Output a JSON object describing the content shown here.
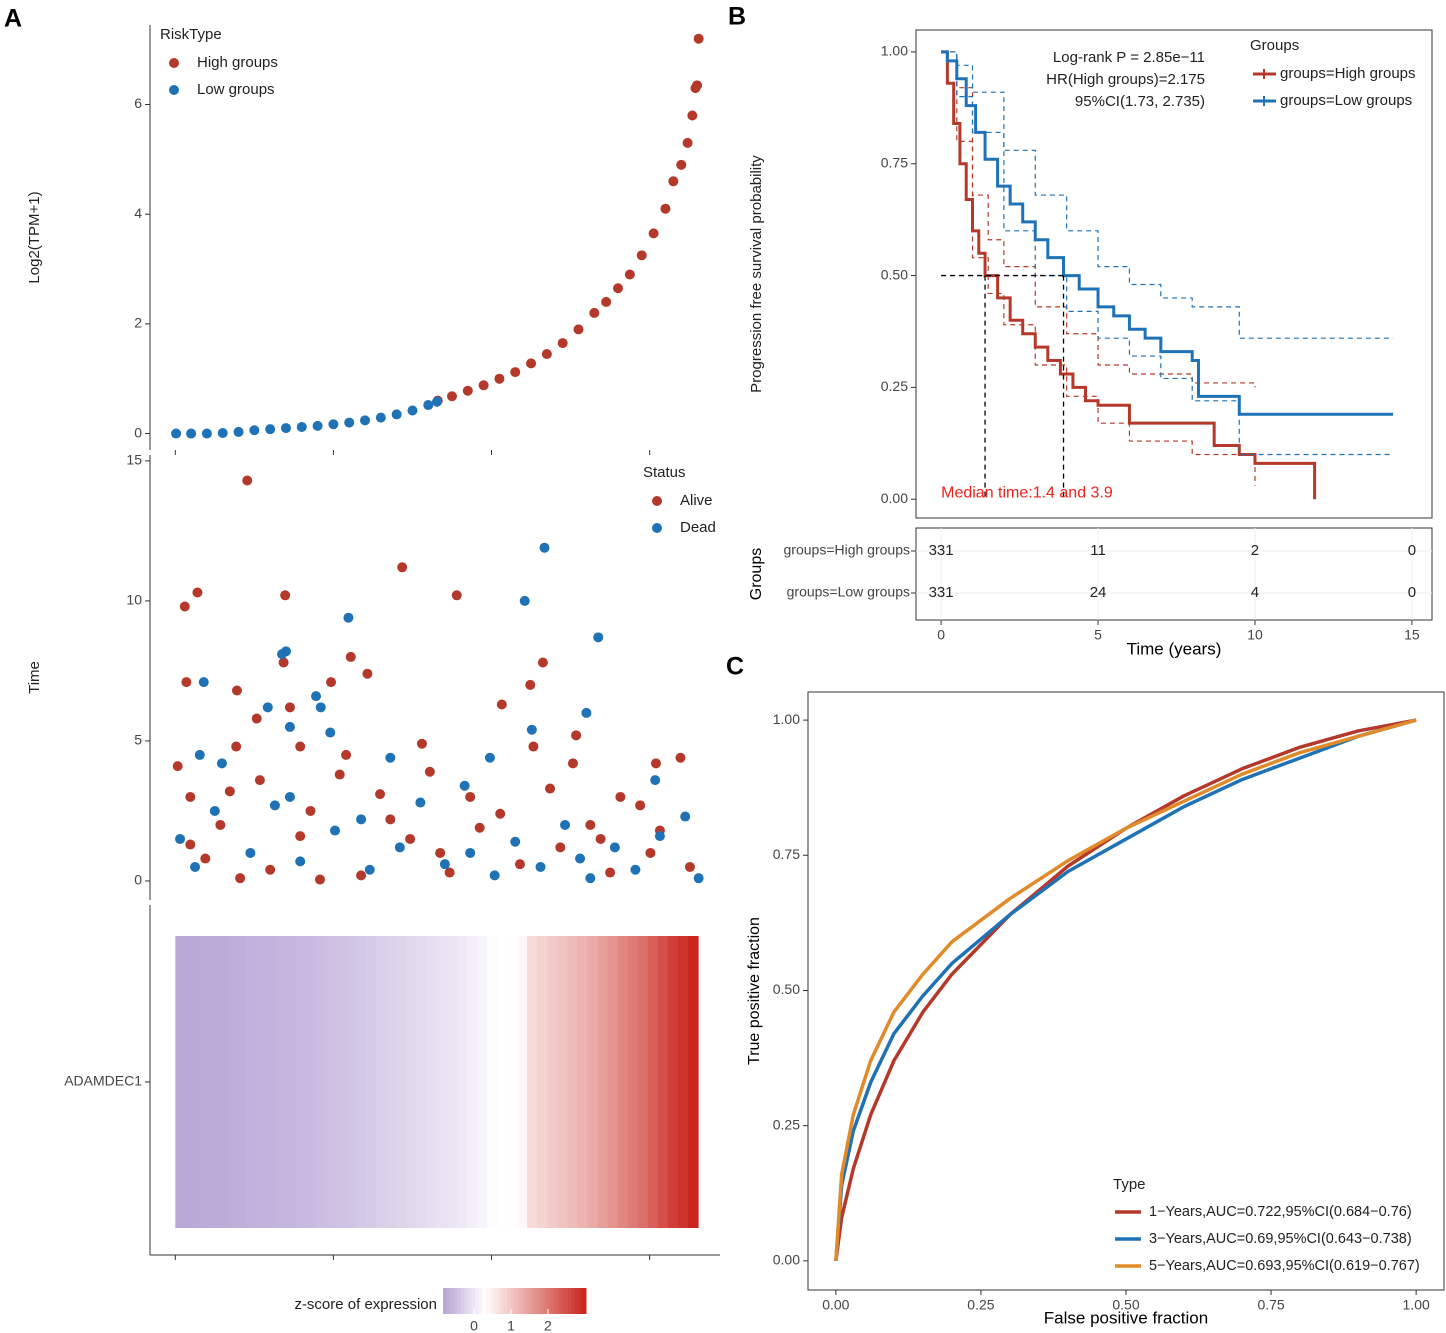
{
  "chart_data": [
    {
      "type": "scatter",
      "panel": "A",
      "ylabel": "Log2(TPM+1)",
      "legend_title": "RiskType",
      "xlim": [
        -32,
        689
      ],
      "xticks": [
        0,
        200,
        400,
        600
      ],
      "ylim": [
        -0.3,
        7.45
      ],
      "yticks": [
        0,
        2,
        4,
        6
      ],
      "series": [
        {
          "name": "High groups",
          "color": "#b5392a",
          "x": [
            332,
            350,
            370,
            390,
            410,
            430,
            450,
            470,
            490,
            510,
            530,
            545,
            560,
            575,
            590,
            605,
            620,
            630,
            640,
            648,
            654,
            658,
            660,
            662
          ],
          "values": [
            0.6,
            0.68,
            0.78,
            0.88,
            1.0,
            1.12,
            1.28,
            1.45,
            1.65,
            1.9,
            2.2,
            2.4,
            2.65,
            2.9,
            3.25,
            3.65,
            4.1,
            4.6,
            4.9,
            5.3,
            5.8,
            6.3,
            6.35,
            7.2
          ]
        },
        {
          "name": "Low groups",
          "color": "#1f72b5",
          "x": [
            1,
            20,
            40,
            60,
            80,
            100,
            120,
            140,
            160,
            180,
            200,
            220,
            240,
            260,
            280,
            300,
            320,
            331
          ],
          "values": [
            0,
            0,
            0,
            0.01,
            0.03,
            0.06,
            0.08,
            0.1,
            0.12,
            0.14,
            0.17,
            0.2,
            0.24,
            0.29,
            0.35,
            0.42,
            0.52,
            0.58
          ]
        }
      ]
    },
    {
      "type": "scatter",
      "ylabel": "Time",
      "legend_title": "Status",
      "xlim": [
        -32,
        689
      ],
      "ylim": [
        -0.68,
        15.21
      ],
      "yticks": [
        0,
        5,
        10,
        15
      ],
      "series": [
        {
          "name": "Alive",
          "color": "#b5392a",
          "x": [
            91,
            12,
            28,
            287,
            356,
            139,
            137,
            222,
            465,
            14,
            243,
            197,
            449,
            413,
            78,
            77,
            103,
            145,
            158,
            216,
            312,
            453,
            507,
            503,
            608,
            639,
            3,
            19,
            69,
            107,
            171,
            208,
            259,
            322,
            373,
            411,
            474,
            525,
            563,
            588,
            613,
            19,
            38,
            82,
            120,
            183,
            235,
            297,
            347,
            385,
            436,
            487,
            550,
            601,
            651,
            57,
            158,
            272,
            335,
            538
          ],
          "values": [
            14.3,
            9.8,
            10.3,
            11.2,
            10.2,
            10.2,
            7.8,
            8.0,
            7.8,
            7.1,
            7.4,
            7.1,
            7.0,
            6.3,
            6.8,
            4.8,
            5.8,
            6.2,
            4.8,
            4.5,
            4.9,
            4.8,
            5.2,
            4.2,
            4.2,
            4.4,
            4.1,
            3.0,
            3.2,
            3.6,
            2.5,
            3.8,
            3.1,
            3.9,
            3.0,
            2.4,
            3.3,
            2.0,
            3.0,
            2.7,
            1.8,
            1.3,
            0.8,
            0.1,
            0.4,
            0.05,
            0.2,
            1.5,
            0.3,
            1.9,
            0.6,
            1.2,
            0.3,
            1.0,
            0.5,
            2.0,
            1.6,
            2.2,
            1.0,
            1.5
          ]
        },
        {
          "name": "Dead",
          "color": "#1f72b5",
          "x": [
            467,
            442,
            219,
            535,
            135,
            140,
            36,
            178,
            520,
            184,
            145,
            196,
            451,
            117,
            31,
            59,
            272,
            398,
            607,
            6,
            25,
            50,
            95,
            126,
            158,
            202,
            246,
            284,
            310,
            341,
            366,
            404,
            430,
            462,
            493,
            525,
            556,
            582,
            613,
            645,
            662,
            145,
            235,
            373,
            512
          ],
          "values": [
            11.9,
            10.0,
            9.4,
            8.7,
            8.1,
            8.2,
            7.1,
            6.6,
            6.0,
            6.2,
            5.5,
            5.3,
            5.4,
            6.2,
            4.5,
            4.2,
            4.4,
            4.4,
            3.6,
            1.5,
            0.5,
            2.5,
            1.0,
            2.7,
            0.7,
            1.8,
            0.4,
            1.2,
            2.8,
            0.6,
            3.4,
            0.2,
            1.4,
            0.5,
            2.0,
            0.1,
            1.2,
            0.4,
            1.6,
            2.3,
            0.1,
            3.0,
            2.2,
            1.0,
            0.8
          ]
        }
      ]
    },
    {
      "type": "heatmap",
      "row_label": "ADAMDEC1",
      "legend_title": "z-score of expression",
      "xlim": [
        -32,
        689
      ],
      "xticks": [
        0,
        200,
        400,
        600
      ],
      "zlim": [
        -0.84,
        3.03
      ],
      "zmid": 0.3,
      "zticks": [
        0,
        1,
        2
      ],
      "colors": [
        "#b6a3d5",
        "#ffffff",
        "#c9241c"
      ],
      "values": [
        -0.78,
        -0.77,
        -0.76,
        -0.75,
        -0.74,
        -0.72,
        -0.7,
        -0.68,
        -0.66,
        -0.64,
        -0.62,
        -0.6,
        -0.57,
        -0.54,
        -0.51,
        -0.48,
        -0.45,
        -0.42,
        -0.38,
        -0.34,
        -0.3,
        -0.26,
        -0.22,
        -0.18,
        -0.14,
        -0.1,
        -0.06,
        -0.02,
        0.04,
        0.1,
        0.18,
        0.26,
        0.3,
        0.32,
        0.4,
        0.75,
        0.85,
        0.95,
        1.05,
        1.15,
        1.25,
        1.35,
        1.5,
        1.65,
        1.8,
        1.95,
        2.1,
        2.3,
        2.5,
        2.7,
        2.85,
        3.0
      ]
    },
    {
      "type": "km",
      "panel": "B",
      "ylabel": "Progression free survival probability",
      "xlabel": "Time (years)",
      "legend_title": "Groups",
      "annotations": [
        "Log-rank P = 2.85e−11",
        "HR(High groups)=2.175",
        "95%CI(1.73, 2.735)"
      ],
      "median_label": "Median time:1.4 and 3.9",
      "median_label_color": "#e8231b",
      "median_x": [
        1.4,
        3.9
      ],
      "median_y": 0.5,
      "xlim": [
        -0.8,
        15.64
      ],
      "xticks": [
        0,
        5,
        10,
        15
      ],
      "ylim": [
        -0.042,
        1.049
      ],
      "yticks": [
        {
          "value": 0,
          "label": "0.00"
        },
        {
          "value": 0.25,
          "label": "0.25"
        },
        {
          "value": 0.5,
          "label": "0.50"
        },
        {
          "value": 0.75,
          "label": "0.75"
        },
        {
          "value": 1,
          "label": "1.00"
        }
      ],
      "series": [
        {
          "name": "groups=High groups",
          "color": "#b5392a",
          "x": [
            0,
            0.2,
            0.4,
            0.6,
            0.8,
            1.0,
            1.2,
            1.4,
            1.8,
            2.2,
            2.6,
            3.0,
            3.4,
            3.8,
            4.2,
            4.6,
            5,
            6,
            7,
            8.7,
            9.5,
            10,
            11.9,
            11.9
          ],
          "values": [
            1,
            0.93,
            0.84,
            0.75,
            0.67,
            0.6,
            0.55,
            0.5,
            0.45,
            0.4,
            0.37,
            0.34,
            0.31,
            0.28,
            0.25,
            0.22,
            0.21,
            0.17,
            0.17,
            0.12,
            0.1,
            0.08,
            0.08,
            0
          ],
          "ci_x": [
            0,
            0.5,
            1,
            1.5,
            2,
            3,
            4,
            5,
            6,
            8,
            10
          ],
          "ci_upper": [
            1,
            0.92,
            0.68,
            0.58,
            0.52,
            0.43,
            0.37,
            0.3,
            0.28,
            0.26,
            0.25
          ],
          "ci_lower": [
            1,
            0.8,
            0.54,
            0.46,
            0.39,
            0.3,
            0.23,
            0.17,
            0.13,
            0.1,
            0.03
          ]
        },
        {
          "name": "groups=Low groups",
          "color": "#1f72b5",
          "x": [
            0,
            0.2,
            0.5,
            0.8,
            1.1,
            1.4,
            1.8,
            2.2,
            2.6,
            3,
            3.4,
            3.9,
            4.4,
            5,
            5.5,
            6,
            6.5,
            7,
            8,
            8.2,
            9.5,
            10,
            14.4
          ],
          "values": [
            1,
            0.98,
            0.94,
            0.88,
            0.82,
            0.76,
            0.7,
            0.66,
            0.62,
            0.58,
            0.54,
            0.5,
            0.47,
            0.43,
            0.41,
            0.38,
            0.36,
            0.33,
            0.31,
            0.23,
            0.19,
            0.19,
            0.19
          ],
          "ci_x": [
            0,
            0.5,
            1,
            2,
            3,
            4,
            5,
            6,
            7,
            8,
            9.5,
            14.4
          ],
          "ci_upper": [
            1,
            0.97,
            0.91,
            0.78,
            0.68,
            0.6,
            0.52,
            0.48,
            0.45,
            0.43,
            0.36,
            0.36
          ],
          "ci_lower": [
            1,
            0.9,
            0.82,
            0.6,
            0.5,
            0.42,
            0.36,
            0.32,
            0.27,
            0.22,
            0.1,
            0.1
          ]
        }
      ],
      "risk_table": {
        "ylabel": "Groups",
        "x": [
          0,
          5,
          10,
          15
        ],
        "rows": [
          {
            "name": "groups=High groups",
            "values": [
              331,
              11,
              2,
              0
            ]
          },
          {
            "name": "groups=Low groups",
            "values": [
              331,
              24,
              4,
              0
            ]
          }
        ]
      }
    },
    {
      "type": "line",
      "panel": "C",
      "xlabel": "False positive fraction",
      "ylabel": "True positive fraction",
      "legend_title": "Type",
      "xlim": [
        -0.048,
        1.048
      ],
      "ylim": [
        -0.054,
        1.052
      ],
      "xticks": [
        {
          "value": 0,
          "label": "0.00"
        },
        {
          "value": 0.25,
          "label": "0.25"
        },
        {
          "value": 0.5,
          "label": "0.50"
        },
        {
          "value": 0.75,
          "label": "0.75"
        },
        {
          "value": 1,
          "label": "1.00"
        }
      ],
      "yticks": [
        {
          "value": 0,
          "label": "0.00"
        },
        {
          "value": 0.25,
          "label": "0.25"
        },
        {
          "value": 0.5,
          "label": "0.50"
        },
        {
          "value": 0.75,
          "label": "0.75"
        },
        {
          "value": 1,
          "label": "1.00"
        }
      ],
      "x": [
        0,
        0.01,
        0.03,
        0.06,
        0.1,
        0.15,
        0.2,
        0.3,
        0.4,
        0.5,
        0.6,
        0.7,
        0.8,
        0.9,
        1
      ],
      "series": [
        {
          "name": "1−Years,AUC=0.722,95%CI(0.684−0.76)",
          "color": "#b5392a",
          "values": [
            0,
            0.08,
            0.17,
            0.27,
            0.37,
            0.46,
            0.53,
            0.64,
            0.73,
            0.8,
            0.86,
            0.91,
            0.95,
            0.98,
            1
          ]
        },
        {
          "name": "3−Years,AUC=0.69,95%CI(0.643−0.738)",
          "color": "#1f72b5",
          "values": [
            0,
            0.14,
            0.24,
            0.33,
            0.42,
            0.49,
            0.55,
            0.64,
            0.72,
            0.78,
            0.84,
            0.89,
            0.93,
            0.97,
            1
          ]
        },
        {
          "name": "5−Years,AUC=0.693,95%CI(0.619−0.767)",
          "color": "#e08a2a",
          "values": [
            0,
            0.16,
            0.27,
            0.37,
            0.46,
            0.53,
            0.59,
            0.67,
            0.74,
            0.8,
            0.85,
            0.9,
            0.94,
            0.97,
            1
          ]
        }
      ]
    }
  ]
}
